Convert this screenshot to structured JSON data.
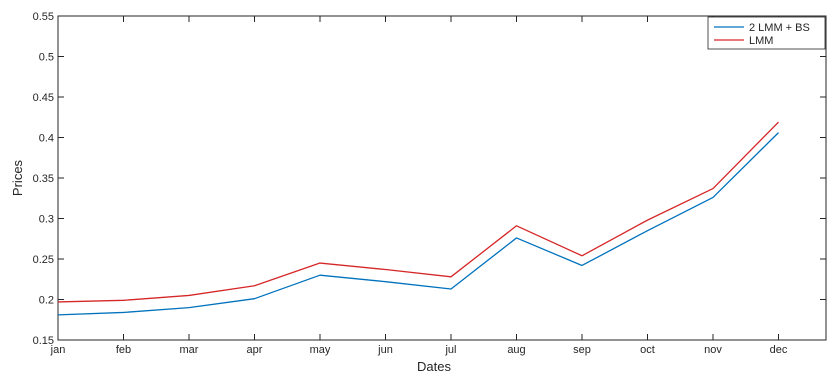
{
  "chart_data": {
    "type": "line",
    "title": "",
    "xlabel": "Dates",
    "ylabel": "Prices",
    "categories": [
      "jan",
      "feb",
      "mar",
      "apr",
      "may",
      "jun",
      "jul",
      "aug",
      "sep",
      "oct",
      "nov",
      "dec"
    ],
    "ylim": [
      0.15,
      0.55
    ],
    "yticks": [
      "0.15",
      "0.2",
      "0.25",
      "0.3",
      "0.35",
      "0.4",
      "0.45",
      "0.5",
      "0.55"
    ],
    "grid": false,
    "legend_position": "top-right",
    "series": [
      {
        "name": "2 LMM + BS",
        "color": "#0072BD",
        "values": [
          0.181,
          0.184,
          0.19,
          0.201,
          0.23,
          0.222,
          0.213,
          0.276,
          0.242,
          0.285,
          0.326,
          0.406
        ]
      },
      {
        "name": "LMM",
        "color": "#D62728",
        "values": [
          0.197,
          0.199,
          0.205,
          0.217,
          0.245,
          0.237,
          0.228,
          0.291,
          0.254,
          0.298,
          0.337,
          0.419
        ]
      }
    ]
  }
}
